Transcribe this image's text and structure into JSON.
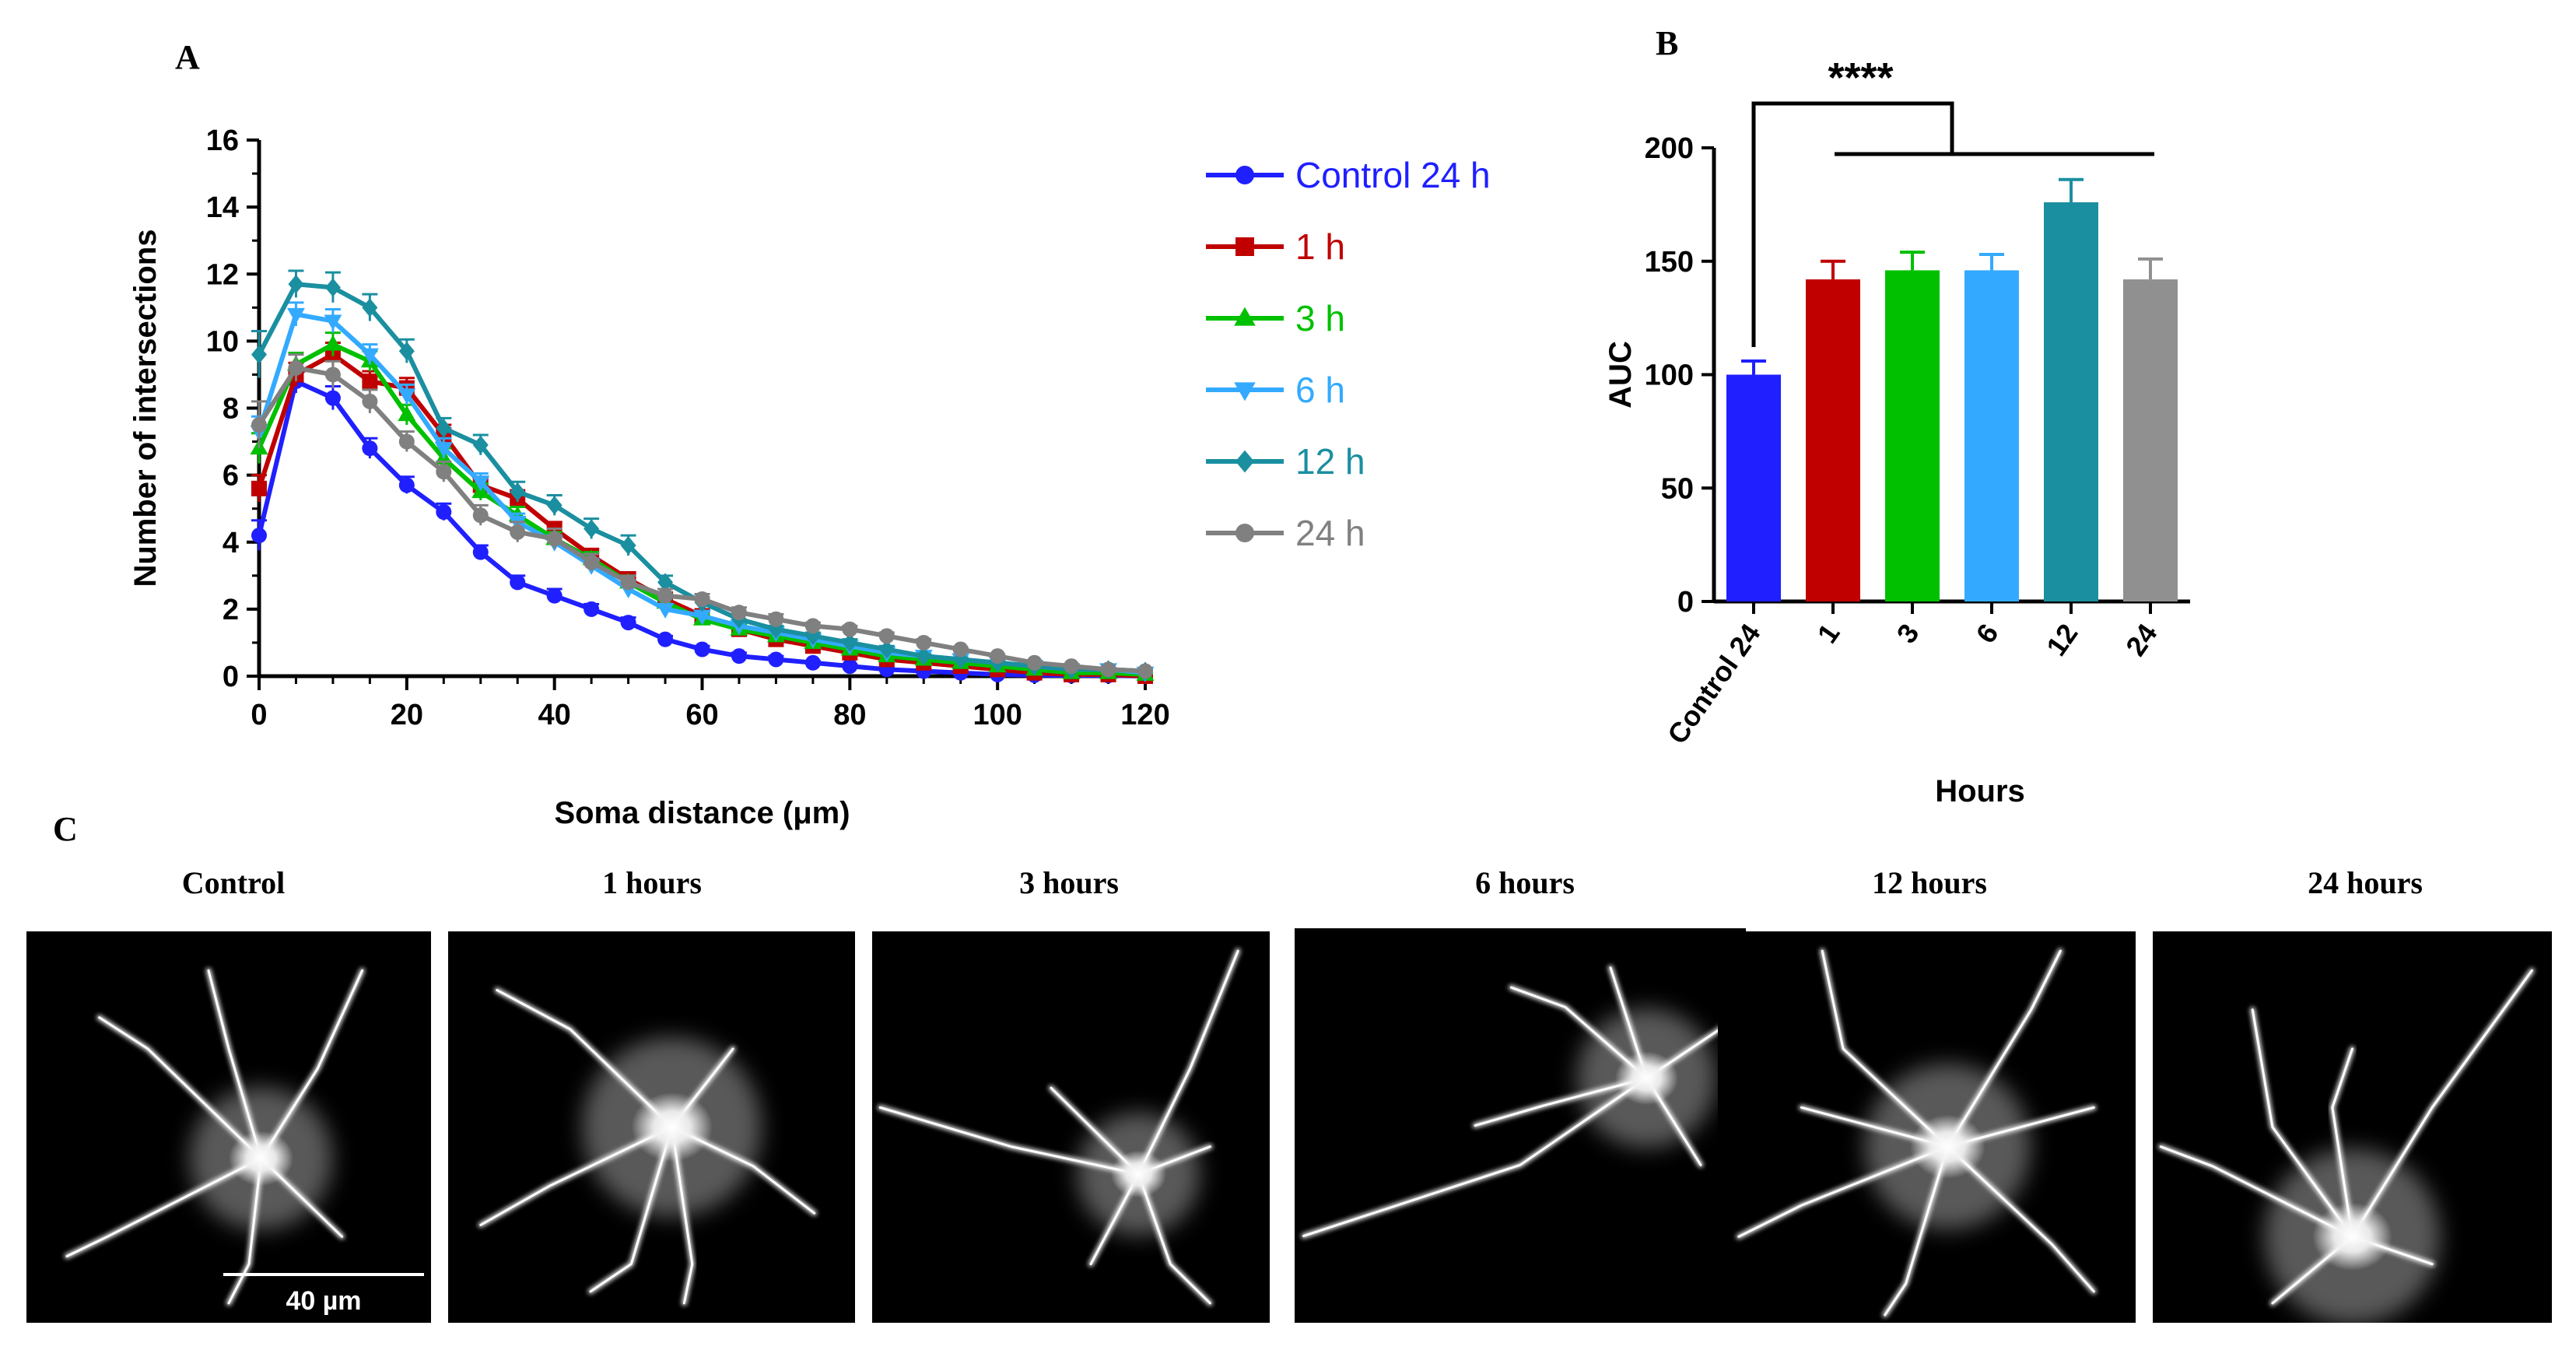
{
  "chart_data": [
    {
      "panel": "A",
      "type": "line",
      "xlabel": "Soma distance (μm)",
      "ylabel": "Number of intersections",
      "xlim": [
        0,
        120
      ],
      "ylim": [
        0,
        16
      ],
      "xticks": [
        "0",
        "20",
        "40",
        "60",
        "80",
        "100",
        "120"
      ],
      "yticks": [
        "0",
        "2",
        "4",
        "6",
        "8",
        "10",
        "12",
        "14",
        "16"
      ],
      "x": [
        0,
        5,
        10,
        15,
        20,
        25,
        30,
        35,
        40,
        45,
        50,
        55,
        60,
        65,
        70,
        75,
        80,
        85,
        90,
        95,
        100,
        105,
        110,
        115,
        120
      ],
      "series": [
        {
          "name": "Control 24 h",
          "color": "#1f1fff",
          "marker": "circle",
          "values": [
            4.2,
            8.8,
            8.3,
            6.8,
            5.7,
            4.9,
            3.7,
            2.8,
            2.4,
            2.0,
            1.6,
            1.1,
            0.8,
            0.6,
            0.5,
            0.4,
            0.3,
            0.2,
            0.15,
            0.1,
            0.05,
            0.03,
            0.02,
            0.02,
            0.0
          ],
          "err": [
            0.45,
            0.35,
            0.35,
            0.3,
            0.25,
            0.25,
            0.2,
            0.2,
            0.2,
            0.15,
            0.15,
            0.1,
            0.1,
            0.1,
            0.1,
            0.05,
            0.05,
            0.05,
            0.05,
            0.05,
            0.05,
            0.03,
            0.02,
            0.02,
            0.0
          ]
        },
        {
          "name": "1 h",
          "color": "#c00000",
          "marker": "square",
          "values": [
            5.6,
            9.0,
            9.6,
            8.8,
            8.6,
            7.2,
            5.7,
            5.3,
            4.4,
            3.6,
            2.9,
            2.3,
            1.8,
            1.4,
            1.1,
            0.9,
            0.7,
            0.5,
            0.4,
            0.3,
            0.2,
            0.1,
            0.05,
            0.05,
            0.0
          ],
          "err": [
            0.4,
            0.35,
            0.35,
            0.3,
            0.3,
            0.3,
            0.25,
            0.25,
            0.2,
            0.2,
            0.2,
            0.15,
            0.15,
            0.15,
            0.1,
            0.1,
            0.1,
            0.1,
            0.05,
            0.05,
            0.05,
            0.05,
            0.03,
            0.03,
            0.0
          ]
        },
        {
          "name": "3 h",
          "color": "#00c000",
          "marker": "triangle-up",
          "values": [
            6.8,
            9.3,
            9.9,
            9.4,
            7.8,
            6.5,
            5.5,
            4.8,
            4.1,
            3.5,
            2.8,
            2.2,
            1.7,
            1.4,
            1.2,
            1.0,
            0.8,
            0.6,
            0.5,
            0.4,
            0.3,
            0.2,
            0.1,
            0.1,
            0.05
          ],
          "err": [
            0.45,
            0.35,
            0.35,
            0.3,
            0.3,
            0.3,
            0.25,
            0.25,
            0.2,
            0.2,
            0.2,
            0.15,
            0.15,
            0.15,
            0.1,
            0.1,
            0.1,
            0.1,
            0.05,
            0.05,
            0.05,
            0.05,
            0.03,
            0.03,
            0.03
          ]
        },
        {
          "name": "6 h",
          "color": "#33aaff",
          "marker": "triangle-down",
          "values": [
            7.3,
            10.8,
            10.6,
            9.6,
            8.4,
            6.8,
            5.8,
            4.6,
            4.0,
            3.3,
            2.6,
            2.0,
            1.8,
            1.5,
            1.3,
            1.1,
            0.9,
            0.7,
            0.6,
            0.5,
            0.4,
            0.3,
            0.2,
            0.2,
            0.1
          ],
          "err": [
            0.45,
            0.35,
            0.35,
            0.3,
            0.3,
            0.3,
            0.25,
            0.25,
            0.2,
            0.2,
            0.2,
            0.15,
            0.15,
            0.15,
            0.1,
            0.1,
            0.1,
            0.1,
            0.05,
            0.05,
            0.05,
            0.05,
            0.03,
            0.03,
            0.03
          ]
        },
        {
          "name": "12 h",
          "color": "#1a8fa0",
          "marker": "diamond",
          "values": [
            9.6,
            11.7,
            11.6,
            11.0,
            9.7,
            7.4,
            6.9,
            5.5,
            5.1,
            4.4,
            3.9,
            2.8,
            2.2,
            1.7,
            1.4,
            1.2,
            1.0,
            0.8,
            0.6,
            0.5,
            0.4,
            0.3,
            0.2,
            0.2,
            0.15
          ],
          "err": [
            0.7,
            0.4,
            0.45,
            0.4,
            0.35,
            0.3,
            0.3,
            0.3,
            0.3,
            0.3,
            0.3,
            0.2,
            0.15,
            0.15,
            0.1,
            0.1,
            0.1,
            0.1,
            0.05,
            0.05,
            0.05,
            0.05,
            0.03,
            0.03,
            0.03
          ]
        },
        {
          "name": "24 h",
          "color": "#808080",
          "marker": "circle",
          "values": [
            7.5,
            9.2,
            9.0,
            8.2,
            7.0,
            6.1,
            4.8,
            4.3,
            4.1,
            3.4,
            2.8,
            2.4,
            2.3,
            1.9,
            1.7,
            1.5,
            1.4,
            1.2,
            1.0,
            0.8,
            0.6,
            0.4,
            0.3,
            0.2,
            0.15
          ],
          "err": [
            0.7,
            0.4,
            0.4,
            0.35,
            0.3,
            0.3,
            0.3,
            0.3,
            0.3,
            0.25,
            0.2,
            0.2,
            0.15,
            0.15,
            0.15,
            0.1,
            0.1,
            0.1,
            0.1,
            0.05,
            0.05,
            0.05,
            0.05,
            0.03,
            0.03
          ]
        }
      ]
    },
    {
      "panel": "B",
      "type": "bar",
      "xlabel": "Hours",
      "ylabel": "AUC",
      "ylim": [
        0,
        200
      ],
      "yticks": [
        "0",
        "50",
        "100",
        "150",
        "200"
      ],
      "categories": [
        "Control 24",
        "1",
        "3",
        "6",
        "12",
        "24"
      ],
      "values": [
        100,
        142,
        146,
        146,
        176,
        142
      ],
      "err": [
        6,
        8,
        8,
        7,
        10,
        9
      ],
      "colors": [
        "#1f1fff",
        "#c00000",
        "#00c000",
        "#33aaff",
        "#1a8fa0",
        "#909090"
      ],
      "significance": "****"
    }
  ],
  "labels": {
    "panel_a": "A",
    "panel_b": "B",
    "panel_c": "C"
  },
  "panel_c": {
    "titles": [
      "Control",
      "1 hours",
      "3 hours",
      "6 hours",
      "12 hours",
      "24 hours"
    ],
    "scale_bar": "40 µm"
  }
}
